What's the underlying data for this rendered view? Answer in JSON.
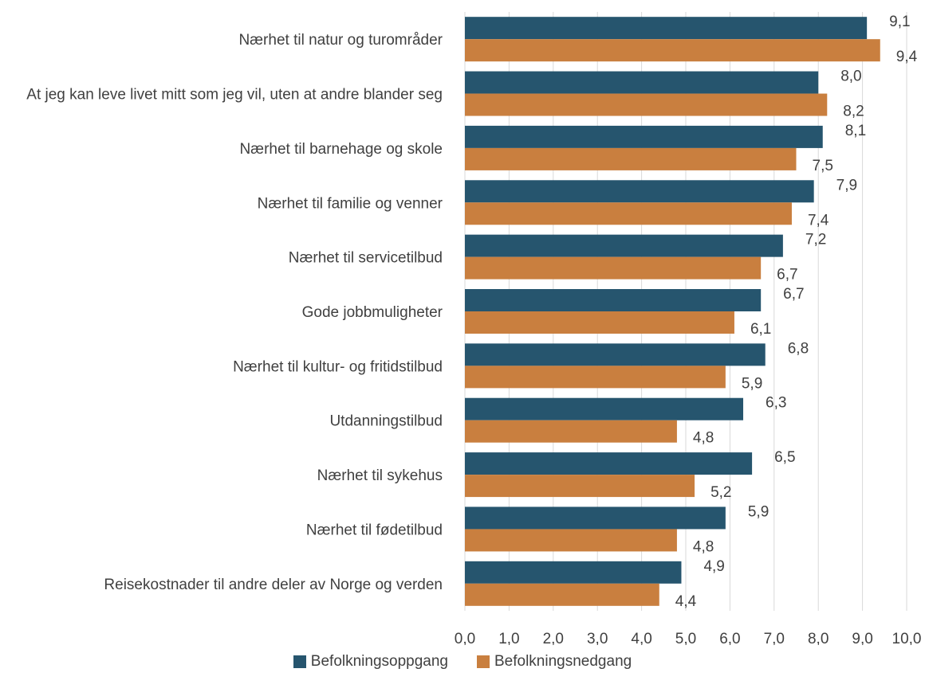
{
  "chart_data": {
    "type": "bar",
    "orientation": "horizontal",
    "categories": [
      "Nærhet til natur og turområder",
      "At jeg kan leve livet mitt som jeg vil, uten at andre blander seg",
      "Nærhet til barnehage og skole",
      "Nærhet til familie og venner",
      "Nærhet til servicetilbud",
      "Gode jobbmuligheter",
      "Nærhet til kultur- og fritidstilbud",
      "Utdanningstilbud",
      "Nærhet til sykehus",
      "Nærhet til fødetilbud",
      "Reisekostnader til andre deler av Norge og verden"
    ],
    "series": [
      {
        "name": "Befolkningsoppgang",
        "color": "#26556e",
        "values": [
          9.1,
          8.0,
          8.1,
          7.9,
          7.2,
          6.7,
          6.8,
          6.3,
          6.5,
          5.9,
          4.9
        ],
        "labels": [
          "9,1",
          "8,0",
          "8,1",
          "7,9",
          "7,2",
          "6,7",
          "6,8",
          "6,3",
          "6,5",
          "5,9",
          "4,9"
        ]
      },
      {
        "name": "Befolkningsnedgang",
        "color": "#c97f3f",
        "values": [
          9.4,
          8.2,
          7.5,
          7.4,
          6.7,
          6.1,
          5.9,
          4.8,
          5.2,
          4.8,
          4.4
        ],
        "labels": [
          "9,4",
          "8,2",
          "7,5",
          "7,4",
          "6,7",
          "6,1",
          "5,9",
          "4,8",
          "5,2",
          "4,8",
          "4,4"
        ]
      }
    ],
    "xlim": [
      0,
      10
    ],
    "x_ticks": [
      "0,0",
      "1,0",
      "2,0",
      "3,0",
      "4,0",
      "5,0",
      "6,0",
      "7,0",
      "8,0",
      "9,0",
      "10,0"
    ],
    "grid": "vertical",
    "legend_position": "bottom"
  }
}
